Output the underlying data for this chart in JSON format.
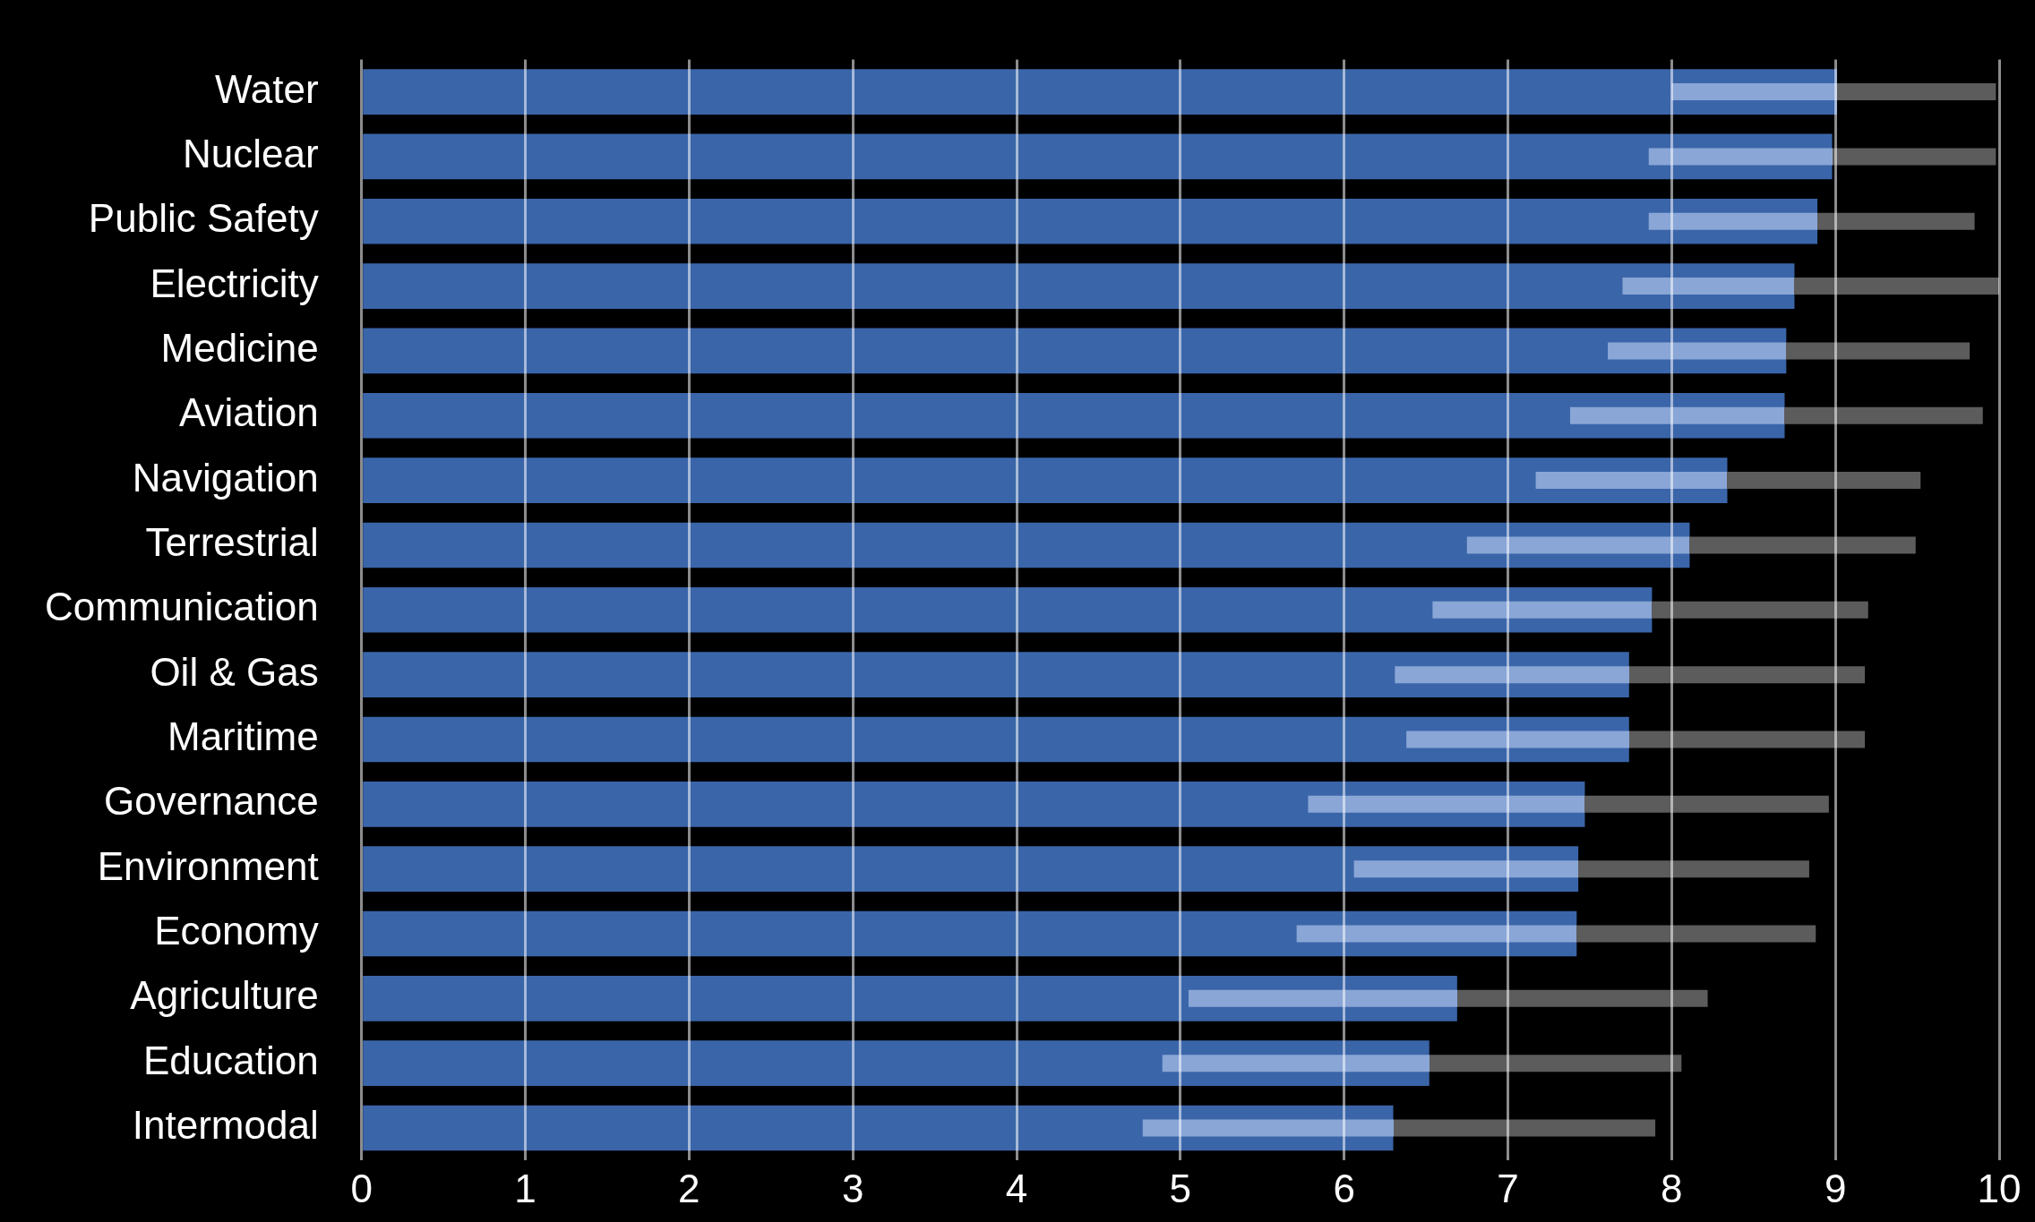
{
  "chart_data": {
    "type": "bar",
    "orientation": "horizontal",
    "categories": [
      "Water",
      "Nuclear",
      "Public Safety",
      "Electricity",
      "Medicine",
      "Aviation",
      "Navigation",
      "Terrestrial",
      "Communication",
      "Oil & Gas",
      "Maritime",
      "Governance",
      "Environment",
      "Economy",
      "Agriculture",
      "Education",
      "Intermodal"
    ],
    "values": [
      9.01,
      8.98,
      8.89,
      8.75,
      8.7,
      8.69,
      8.34,
      8.11,
      7.88,
      7.74,
      7.74,
      7.47,
      7.43,
      7.42,
      6.69,
      6.52,
      6.3
    ],
    "errors": [
      [
        8.0,
        9.98
      ],
      [
        7.86,
        9.98
      ],
      [
        7.86,
        9.85
      ],
      [
        7.7,
        10.0
      ],
      [
        7.61,
        9.82
      ],
      [
        7.38,
        9.9
      ],
      [
        7.17,
        9.52
      ],
      [
        6.75,
        9.49
      ],
      [
        6.54,
        9.2
      ],
      [
        6.31,
        9.18
      ],
      [
        6.38,
        9.18
      ],
      [
        5.78,
        8.96
      ],
      [
        6.06,
        8.84
      ],
      [
        5.71,
        8.88
      ],
      [
        5.05,
        8.22
      ],
      [
        4.89,
        8.06
      ],
      [
        4.77,
        7.9
      ]
    ],
    "color": "#3a65a9",
    "xlim": [
      0,
      10
    ],
    "xticks": [
      0,
      1,
      2,
      3,
      4,
      5,
      6,
      7,
      8,
      9,
      10
    ],
    "grid": "x",
    "legend": false
  }
}
